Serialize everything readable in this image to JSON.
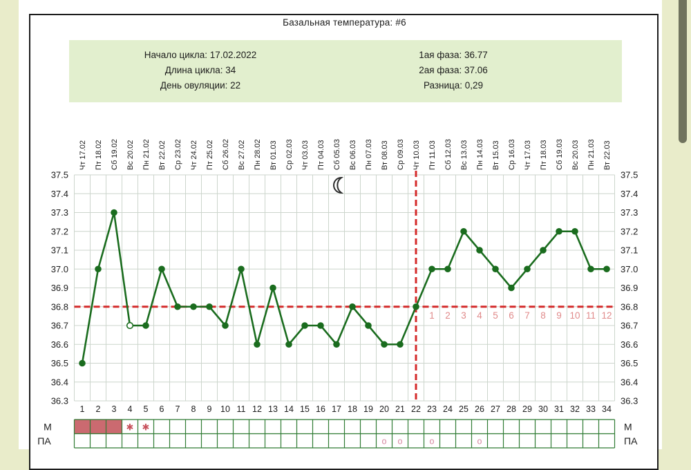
{
  "header": {
    "title": "Базальная температура: #6"
  },
  "info_box": {
    "left": [
      "Начало цикла: 17.02.2022",
      "Длина цикла: 34",
      "День овуляции: 22"
    ],
    "right": [
      "1ая фаза: 36.77",
      "2ая фаза: 37.06",
      "Разница: 0,29"
    ]
  },
  "chart_data": {
    "type": "line",
    "title": "Базальная температура: #6",
    "x_days": [
      1,
      2,
      3,
      4,
      5,
      6,
      7,
      8,
      9,
      10,
      11,
      12,
      13,
      14,
      15,
      16,
      17,
      18,
      19,
      20,
      21,
      22,
      23,
      24,
      25,
      26,
      27,
      28,
      29,
      30,
      31,
      32,
      33,
      34
    ],
    "date_labels": [
      "Чт 17.02",
      "Пт 18.02",
      "Сб 19.02",
      "Вс 20.02",
      "Пн 21.02",
      "Вт 22.02",
      "Ср 23.02",
      "Чт 24.02",
      "Пт 25.02",
      "Сб 26.02",
      "Вс 27.02",
      "Пн 28.02",
      "Вт 01.03",
      "Ср 02.03",
      "Чт 03.03",
      "Пт 04.03",
      "Сб 05.03",
      "Вс 06.03",
      "Пн 07.03",
      "Вт 08.03",
      "Ср 09.03",
      "Чт 10.03",
      "Пт 11.03",
      "Сб 12.03",
      "Вс 13.03",
      "Пн 14.03",
      "Вт 15.03",
      "Ср 16.03",
      "Чт 17.03",
      "Пт 18.03",
      "Сб 19.03",
      "Вс 20.03",
      "Пн 21.03",
      "Вт 22.03"
    ],
    "values": [
      36.5,
      37.0,
      37.3,
      36.7,
      36.7,
      37.0,
      36.8,
      36.8,
      36.8,
      36.7,
      37.0,
      36.6,
      36.9,
      36.6,
      36.7,
      36.7,
      36.6,
      36.8,
      36.7,
      36.6,
      36.6,
      36.8,
      37.0,
      37.0,
      37.2,
      37.1,
      37.0,
      36.9,
      37.0,
      37.1,
      37.2,
      37.2,
      37.0,
      37.0
    ],
    "open_marker_days": [
      4
    ],
    "ylim": [
      36.3,
      37.5
    ],
    "yticks": [
      "37.5",
      "37.4",
      "37.3",
      "37.2",
      "37.1",
      "37.0",
      "36.9",
      "36.8",
      "36.7",
      "36.6",
      "36.5",
      "36.4",
      "36.3"
    ],
    "coverline_temp": 36.8,
    "ovulation_line_day": 22,
    "dpo": {
      "start_day": 23,
      "labels": [
        "1",
        "2",
        "3",
        "4",
        "5",
        "6",
        "7",
        "8",
        "9",
        "10",
        "11",
        "12"
      ]
    },
    "moon_day": 17,
    "bottom_rows": {
      "m_label": "М",
      "pa_label": "ПА",
      "m_filled_days": [
        1,
        2,
        3
      ],
      "m_star_days": [
        4,
        5
      ],
      "star_glyph": "✱",
      "pa_circle_days": [
        20,
        21,
        23,
        26
      ],
      "circle_glyph": "о"
    },
    "grid": true,
    "legend": "none",
    "colors": {
      "line": "#1a6c1e",
      "grid": "#ccd5cc",
      "red_line": "#d42a2a",
      "dpo_text": "#e08a8a",
      "m_fill": "#cb6a70",
      "star": "#c8535e",
      "pa_circle": "#d687a0",
      "table_border": "#2f7b33",
      "text": "#1b1b1b",
      "info_bg": "#e2efce",
      "page_bg": "#e9ecca",
      "scroll_thumb": "#70735e"
    }
  }
}
